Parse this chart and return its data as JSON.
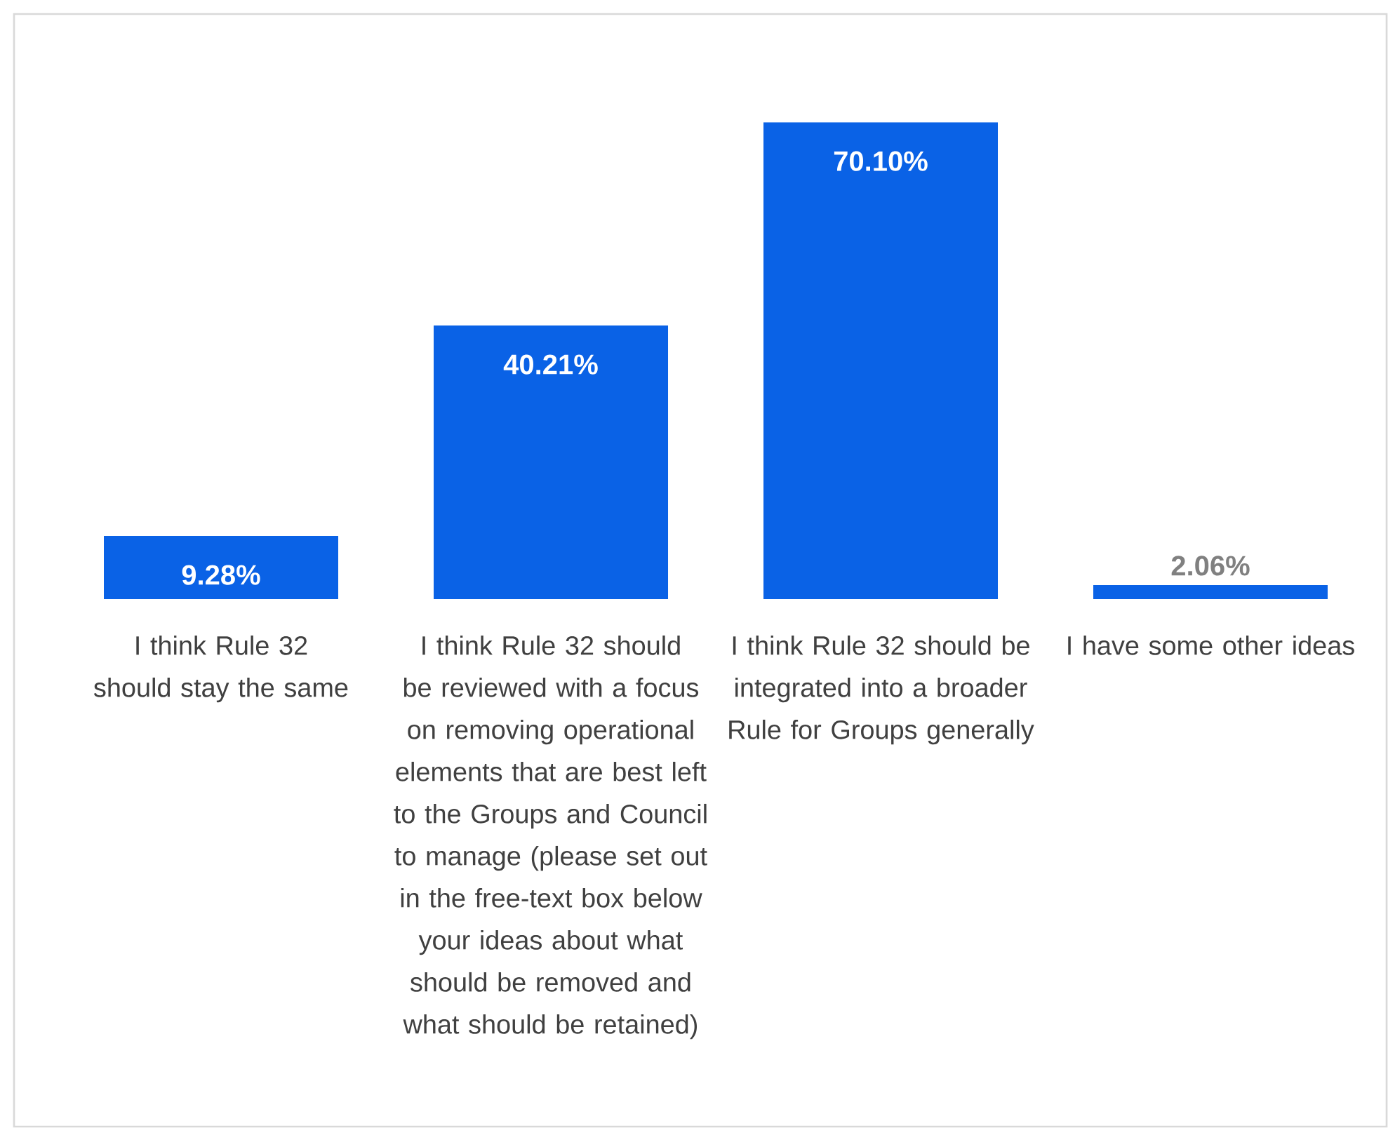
{
  "chart_data": {
    "type": "bar",
    "categories": [
      "I think Rule 32 should stay the same",
      "I think Rule 32 should be reviewed with a focus on removing operational elements that are best left to the Groups and Council to manage (please set out in the free-text box below your ideas about what should be removed and what should be retained)",
      "I think Rule 32 should be integrated into a broader Rule for Groups generally",
      "I have some other ideas"
    ],
    "values": [
      9.28,
      40.21,
      70.1,
      2.06
    ],
    "value_labels": [
      "9.28%",
      "40.21%",
      "70.10%",
      "2.06%"
    ],
    "color": "#0a62e6"
  }
}
